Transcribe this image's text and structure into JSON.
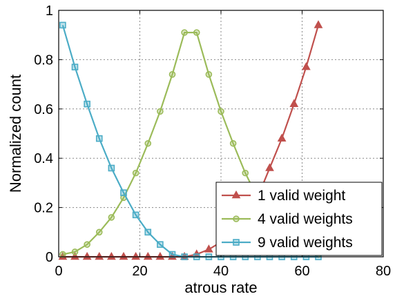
{
  "chart_data": {
    "type": "line",
    "xlabel": "atrous rate",
    "ylabel": "Normalized count",
    "xlim": [
      0,
      80
    ],
    "ylim": [
      0,
      1
    ],
    "xticks": [
      0,
      20,
      40,
      60,
      80
    ],
    "yticks": [
      0,
      0.2,
      0.4,
      0.6,
      0.8,
      1
    ],
    "ytick_labels": [
      "0",
      "0.2",
      "0.4",
      "0.6",
      "0.8",
      "1"
    ],
    "grid": true,
    "legend_position": "bottom-right",
    "series": [
      {
        "name": "1 valid weight",
        "color": "#c0504d",
        "marker": "triangle",
        "x": [
          1,
          4,
          7,
          10,
          13,
          16,
          19,
          22,
          25,
          28,
          31,
          34,
          37,
          40,
          43,
          46,
          49,
          52,
          55,
          58,
          61,
          64
        ],
        "y": [
          0,
          0,
          0,
          0,
          0,
          0,
          0,
          0,
          0,
          0,
          0,
          0.01,
          0.03,
          0.06,
          0.1,
          0.16,
          0.24,
          0.36,
          0.48,
          0.62,
          0.77,
          0.94
        ]
      },
      {
        "name": "4 valid weights",
        "color": "#9bbb59",
        "marker": "circle",
        "x": [
          1,
          4,
          7,
          10,
          13,
          16,
          19,
          22,
          25,
          28,
          31,
          34,
          37,
          40,
          43,
          46,
          49,
          52,
          55,
          58,
          61,
          64
        ],
        "y": [
          0.01,
          0.02,
          0.05,
          0.1,
          0.16,
          0.24,
          0.34,
          0.46,
          0.59,
          0.74,
          0.91,
          0.91,
          0.74,
          0.59,
          0.46,
          0.34,
          0.24,
          0.16,
          0.1,
          0.05,
          0.02,
          0.01
        ]
      },
      {
        "name": "9 valid weights",
        "color": "#4bacc6",
        "marker": "square",
        "x": [
          1,
          4,
          7,
          10,
          13,
          16,
          19,
          22,
          25,
          28,
          31,
          34,
          37,
          40,
          43,
          46,
          49,
          52,
          55,
          58,
          61,
          64
        ],
        "y": [
          0.94,
          0.77,
          0.62,
          0.48,
          0.36,
          0.26,
          0.17,
          0.1,
          0.05,
          0.01,
          0,
          0,
          0,
          0,
          0,
          0,
          0,
          0,
          0,
          0,
          0,
          0
        ]
      }
    ]
  }
}
